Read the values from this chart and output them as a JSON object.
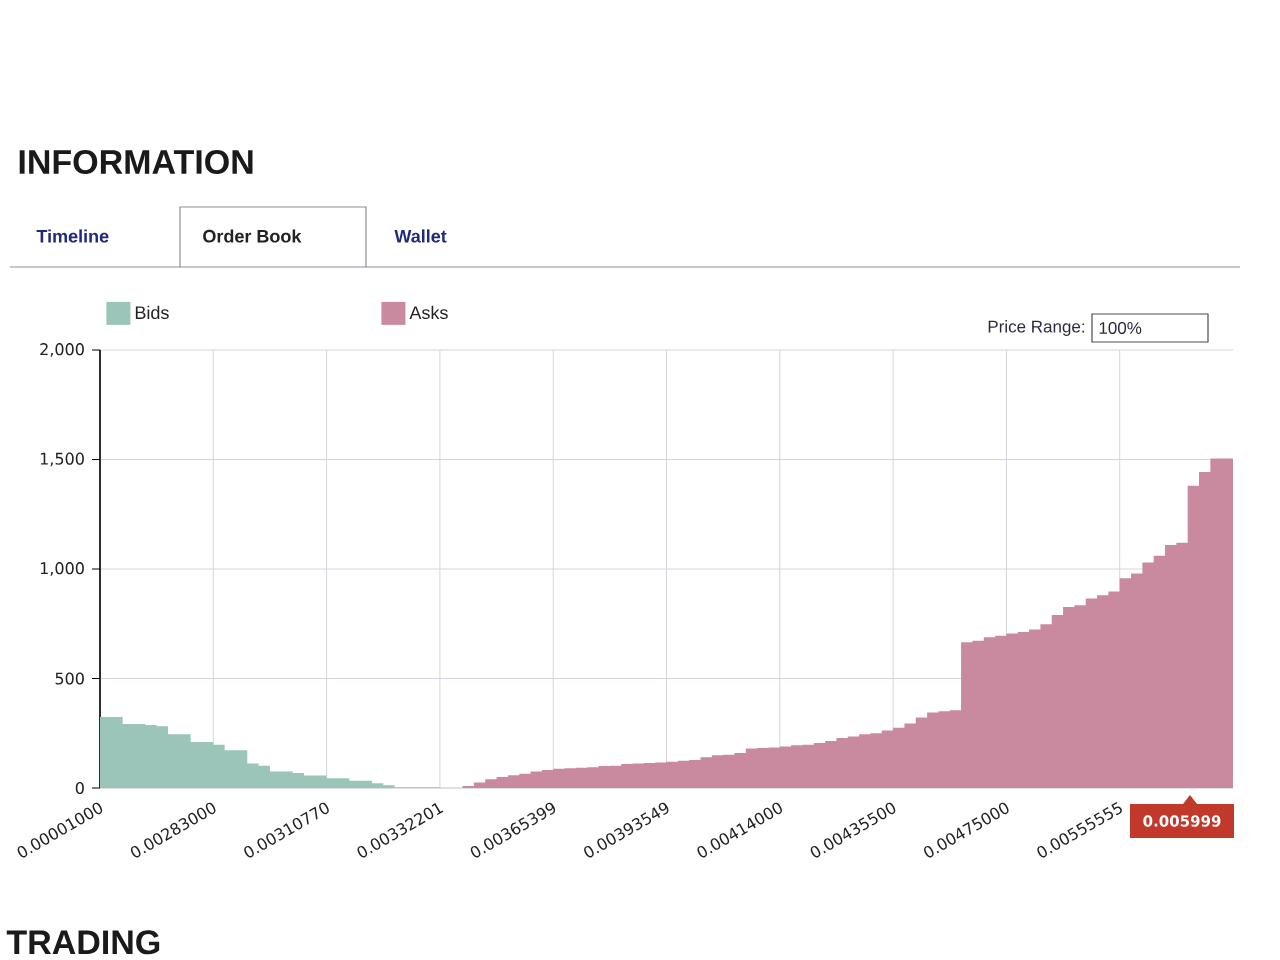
{
  "chart_data": {
    "type": "area",
    "title": "INFORMATION",
    "categories": [
      "0.00001000",
      null,
      null,
      null,
      null,
      null,
      null,
      null,
      null,
      null,
      "0.00283000",
      null,
      null,
      null,
      null,
      null,
      null,
      null,
      null,
      null,
      "0.00310770",
      null,
      null,
      null,
      null,
      null,
      null,
      null,
      null,
      null,
      "0.00332201",
      null,
      null,
      null,
      null,
      null,
      null,
      null,
      null,
      null,
      "0.00365399",
      null,
      null,
      null,
      null,
      null,
      null,
      null,
      null,
      null,
      "0.00393549",
      null,
      null,
      null,
      null,
      null,
      null,
      null,
      null,
      null,
      "0.00414000",
      null,
      null,
      null,
      null,
      null,
      null,
      null,
      null,
      null,
      "0.00435500",
      null,
      null,
      null,
      null,
      null,
      null,
      null,
      null,
      null,
      "0.00475000",
      null,
      null,
      null,
      null,
      null,
      null,
      null,
      null,
      null,
      "0.00555555",
      null,
      null,
      null,
      null,
      null,
      null,
      null,
      null,
      null,
      null
    ],
    "series": [
      {
        "name": "Bids",
        "color": "#9cc5b9",
        "values": [
          325,
          325,
          292,
          292,
          288,
          282,
          245,
          245,
          210,
          210,
          198,
          172,
          172,
          112,
          102,
          75,
          75,
          68,
          57,
          57,
          45,
          45,
          33,
          33,
          22,
          12,
          3,
          3,
          3,
          3,
          3,
          null,
          null,
          null,
          null,
          null,
          null,
          null,
          null,
          null,
          null,
          null,
          null,
          null,
          null,
          null,
          null,
          null,
          null,
          null,
          null,
          null,
          null,
          null,
          null,
          null,
          null,
          null,
          null,
          null,
          null,
          null,
          null,
          null,
          null,
          null,
          null,
          null,
          null,
          null,
          null,
          null,
          null,
          null,
          null,
          null,
          null,
          null,
          null,
          null,
          null,
          null,
          null,
          null,
          null,
          null,
          null,
          null,
          null,
          null,
          null,
          null,
          null,
          null,
          null,
          null,
          null,
          null,
          null,
          null,
          null
        ]
      },
      {
        "name": "Asks",
        "color": "#c98aa0",
        "values": [
          null,
          null,
          null,
          null,
          null,
          null,
          null,
          null,
          null,
          null,
          null,
          null,
          null,
          null,
          null,
          null,
          null,
          null,
          null,
          null,
          null,
          null,
          null,
          null,
          null,
          null,
          null,
          null,
          null,
          null,
          null,
          null,
          9,
          25,
          40,
          50,
          58,
          65,
          75,
          82,
          88,
          90,
          92,
          95,
          100,
          102,
          110,
          112,
          114,
          116,
          120,
          125,
          128,
          140,
          150,
          152,
          160,
          180,
          183,
          185,
          190,
          195,
          198,
          205,
          215,
          228,
          235,
          245,
          250,
          262,
          275,
          295,
          322,
          345,
          350,
          355,
          665,
          672,
          688,
          695,
          705,
          712,
          724,
          748,
          790,
          827,
          835,
          865,
          880,
          897,
          958,
          980,
          1030,
          1060,
          1110,
          1120,
          1380,
          1443,
          1505,
          1505,
          1505
        ]
      }
    ],
    "ylim": [
      0,
      2000
    ],
    "yticks": [
      0,
      500,
      {
        "value": 1000,
        "label": "1,000"
      },
      {
        "value": 1500,
        "label": "1,500"
      },
      {
        "value": 2000,
        "label": "2,000"
      }
    ],
    "grid": true,
    "legend": "top",
    "annotations": [
      "Timeline",
      "Order Book",
      "Wallet",
      "Price Range:",
      "100%",
      "0.005999",
      "TRADING"
    ]
  }
}
